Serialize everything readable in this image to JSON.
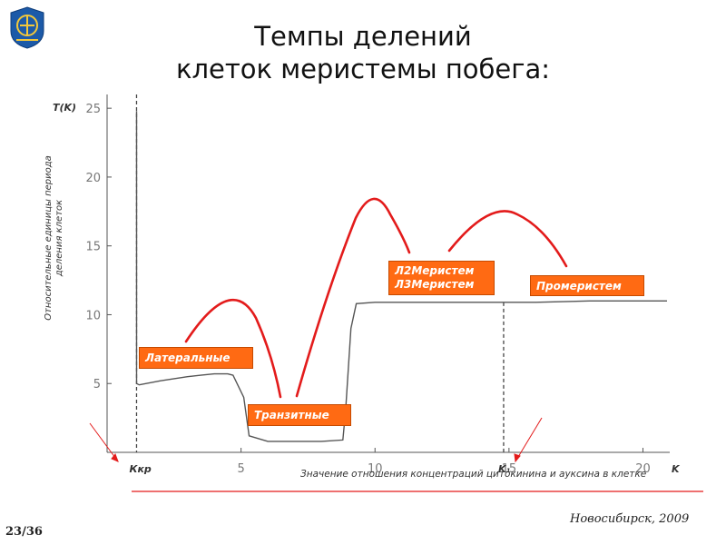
{
  "title_line1": "Темпы делений",
  "title_line2": "клеток меристемы побега:",
  "footer": {
    "city_year": "Новосибирск, 2009",
    "page": "23/36"
  },
  "colors": {
    "curve": "#555555",
    "arrows": "#e31b1b",
    "label_bg": "#ff6a13",
    "hline": "#e31b1b",
    "logo": "#1c5aa8"
  },
  "labels": {
    "lateral": "Латеральные",
    "transit": "Транзитные",
    "meristem_l2": "Л2Меристем",
    "meristem_l3": "Л3Меристем",
    "promeristem": "Промеристем"
  },
  "chart_data": {
    "type": "line",
    "ylabel_top": "T(K)",
    "ylabel": "Относительные единицы периода деления клеток",
    "xlabel_axis": "K",
    "xlabel": "Значение отношения концентраций цитокинина и ауксина в клетке",
    "xlim": [
      0,
      21
    ],
    "ylim": [
      0,
      26
    ],
    "x_ticks": [
      5,
      10,
      15,
      20
    ],
    "y_ticks": [
      5,
      10,
      15,
      20,
      25
    ],
    "grid": false,
    "markers": [
      {
        "name": "Ккр",
        "x": 1.1
      },
      {
        "name": "K₁",
        "x": 14.8
      }
    ],
    "series": [
      {
        "x": [
          1.1,
          1.1,
          1.2,
          2.0,
          3.0,
          3.5,
          4.0,
          4.5,
          4.7,
          5.1,
          5.3,
          6.0,
          7.0,
          8.0,
          8.8,
          8.9,
          9.1,
          9.3,
          10.0,
          12.0,
          14.0,
          16.0,
          18.0,
          20.0,
          20.9
        ],
        "y": [
          24.8,
          5.0,
          4.9,
          5.2,
          5.5,
          5.6,
          5.7,
          5.7,
          5.6,
          4.0,
          1.2,
          0.8,
          0.8,
          0.8,
          0.9,
          3.0,
          9.0,
          10.8,
          10.9,
          10.9,
          10.9,
          10.9,
          11.0,
          11.0,
          11.0
        ]
      }
    ]
  }
}
